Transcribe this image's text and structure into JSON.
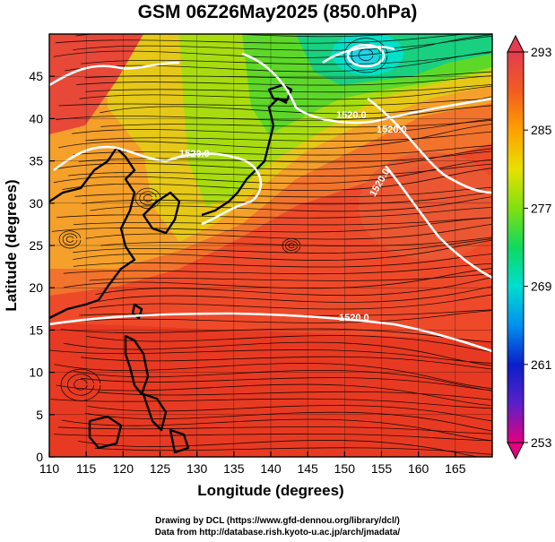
{
  "title": "GSM 06Z26May2025 (850.0hPa)",
  "x_axis": {
    "label": "Longitude (degrees)",
    "range": [
      110,
      170
    ],
    "ticks": [
      110,
      115,
      120,
      125,
      130,
      135,
      140,
      145,
      150,
      155,
      160,
      165
    ]
  },
  "y_axis": {
    "label": "Latitude  (degrees)",
    "range": [
      0,
      50
    ],
    "ticks": [
      0,
      5,
      10,
      15,
      20,
      25,
      30,
      35,
      40,
      45
    ]
  },
  "colorbar": {
    "ticks": [
      293,
      285,
      277,
      269,
      261,
      253
    ],
    "range": [
      253,
      293
    ],
    "colors": [
      "#e4007f",
      "#5a20c8",
      "#0a1fc8",
      "#0090f0",
      "#00ddd0",
      "#10d860",
      "#80e010",
      "#e8e000",
      "#ffa000",
      "#f25c20",
      "#e43c50"
    ]
  },
  "contour_labels": [
    "1520.0",
    "1520.0",
    "1520.0",
    "1520.0",
    "1520.0"
  ],
  "credits": {
    "line1": "Drawing by DCL (https://www.gfd-dennou.org/library/dcl/)",
    "line2": "Data from http://database.rish.kyoto-u.ac.jp/arch/jmadata/"
  }
}
